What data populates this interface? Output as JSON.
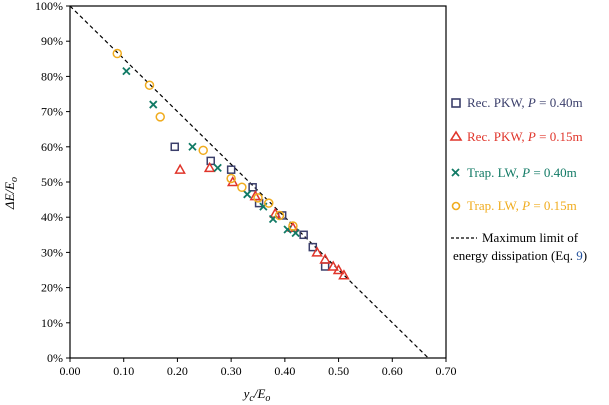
{
  "chart_data": {
    "type": "scatter",
    "xlabel": {
      "main": "y",
      "sub1": "c",
      "sep": "/E",
      "sub2": "o"
    },
    "ylabel": {
      "main": "ΔE/E",
      "sub": "o"
    },
    "xlim": [
      0,
      0.7
    ],
    "ylim": [
      0,
      1.0
    ],
    "x_ticks": [
      "0.00",
      "0.10",
      "0.20",
      "0.30",
      "0.40",
      "0.50",
      "0.60",
      "0.70"
    ],
    "y_ticks": [
      "0%",
      "10%",
      "20%",
      "30%",
      "40%",
      "50%",
      "60%",
      "70%",
      "80%",
      "90%",
      "100%"
    ],
    "series": [
      {
        "name": "Rec. PKW, P = 0.40m",
        "label_pre": "Rec. PKW, ",
        "label_var": "P",
        "label_post": " = 0.40m",
        "marker": "square",
        "color": "#3b3f6b",
        "points": [
          [
            0.195,
            0.6
          ],
          [
            0.262,
            0.56
          ],
          [
            0.3,
            0.535
          ],
          [
            0.34,
            0.485
          ],
          [
            0.352,
            0.44
          ],
          [
            0.395,
            0.405
          ],
          [
            0.435,
            0.35
          ],
          [
            0.452,
            0.315
          ],
          [
            0.475,
            0.26
          ]
        ]
      },
      {
        "name": "Rec. PKW, P = 0.15m",
        "label_pre": "Rec. PKW, ",
        "label_var": "P",
        "label_post": " = 0.15m",
        "marker": "triangle",
        "color": "#e0352b",
        "points": [
          [
            0.205,
            0.535
          ],
          [
            0.26,
            0.54
          ],
          [
            0.303,
            0.5
          ],
          [
            0.345,
            0.46
          ],
          [
            0.382,
            0.41
          ],
          [
            0.415,
            0.37
          ],
          [
            0.46,
            0.3
          ],
          [
            0.475,
            0.28
          ],
          [
            0.49,
            0.26
          ],
          [
            0.5,
            0.25
          ],
          [
            0.51,
            0.235
          ]
        ]
      },
      {
        "name": "Trap. LW, P = 0.40m",
        "label_pre": "Trap. LW, ",
        "label_var": "P",
        "label_post": " = 0.40m",
        "marker": "x",
        "color": "#117a65",
        "points": [
          [
            0.105,
            0.815
          ],
          [
            0.155,
            0.72
          ],
          [
            0.228,
            0.6
          ],
          [
            0.275,
            0.54
          ],
          [
            0.33,
            0.465
          ],
          [
            0.36,
            0.43
          ],
          [
            0.378,
            0.395
          ],
          [
            0.405,
            0.365
          ],
          [
            0.42,
            0.355
          ]
        ]
      },
      {
        "name": "Trap. LW, P = 0.15m",
        "label_pre": "Trap. LW, ",
        "label_var": "P",
        "label_post": " = 0.15m",
        "marker": "circle",
        "color": "#f0ac1e",
        "points": [
          [
            0.088,
            0.865
          ],
          [
            0.148,
            0.775
          ],
          [
            0.168,
            0.685
          ],
          [
            0.248,
            0.59
          ],
          [
            0.3,
            0.51
          ],
          [
            0.32,
            0.485
          ],
          [
            0.35,
            0.455
          ],
          [
            0.37,
            0.44
          ],
          [
            0.39,
            0.405
          ],
          [
            0.415,
            0.375
          ]
        ]
      }
    ],
    "reference_line": {
      "label_line1": "Maximum limit of",
      "label_line2_pre": "energy dissipation (Eq. ",
      "label_line2_ref": "9",
      "label_line2_post": ")",
      "start": [
        0,
        1.0
      ],
      "end": [
        0.667,
        0
      ],
      "color": "#000000"
    },
    "grid": false,
    "legend_position": "right"
  },
  "colors": {
    "eq_ref": "#1f4e9a"
  }
}
